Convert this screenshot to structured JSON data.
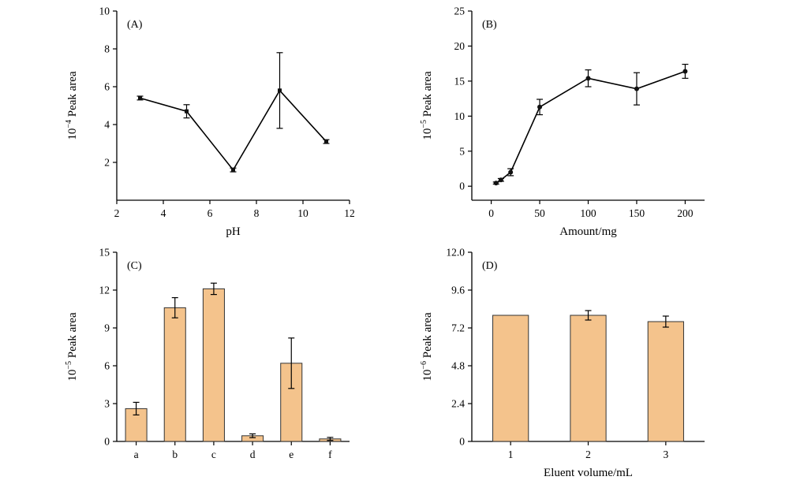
{
  "style": {
    "background": "#ffffff",
    "axis": "#000000",
    "text": "#000000",
    "line": "#000000",
    "marker": "#111111",
    "bar_fill": "#f4c38c",
    "bar_edge": "#333333"
  },
  "chart_data": [
    {
      "id": "A",
      "type": "line",
      "panel_label": "(A)",
      "xlabel": "pH",
      "ylabel_base": "10",
      "ylabel_exp": "−4",
      "ylabel_rest": " Peak area",
      "xlim": [
        2,
        12
      ],
      "ylim": [
        0,
        10
      ],
      "xticks": [
        2,
        4,
        6,
        8,
        10,
        12
      ],
      "xtick_labels": [
        "2",
        "4",
        "6",
        "8",
        "10",
        "12"
      ],
      "yticks": [
        2,
        4,
        6,
        8,
        10
      ],
      "ytick_labels": [
        "2",
        "4",
        "6",
        "8",
        "10"
      ],
      "marker": "square",
      "x": [
        3,
        5,
        7,
        9,
        11
      ],
      "y": [
        5.4,
        4.7,
        1.6,
        5.8,
        3.1
      ],
      "yerr": [
        0.1,
        0.35,
        0.1,
        2.0,
        0.1
      ]
    },
    {
      "id": "B",
      "type": "line",
      "panel_label": "(B)",
      "xlabel": "Amount/mg",
      "ylabel_base": "10",
      "ylabel_exp": "−5",
      "ylabel_rest": " Peak area",
      "xlim": [
        -20,
        220
      ],
      "ylim": [
        -2,
        25
      ],
      "xticks": [
        0,
        50,
        100,
        150,
        200
      ],
      "xtick_labels": [
        "0",
        "50",
        "100",
        "150",
        "200"
      ],
      "yticks": [
        0,
        5,
        10,
        15,
        20,
        25
      ],
      "ytick_labels": [
        "0",
        "5",
        "10",
        "15",
        "20",
        "25"
      ],
      "marker": "circle",
      "x": [
        5,
        10,
        20,
        50,
        100,
        150,
        200
      ],
      "y": [
        0.45,
        0.9,
        2.0,
        11.3,
        15.4,
        13.9,
        16.4
      ],
      "yerr": [
        0.15,
        0.2,
        0.5,
        1.1,
        1.2,
        2.3,
        1.0
      ]
    },
    {
      "id": "C",
      "type": "bar",
      "panel_label": "(C)",
      "xlabel": "",
      "ylabel_base": "10",
      "ylabel_exp": "−5",
      "ylabel_rest": " Peak area",
      "ylim": [
        0,
        15
      ],
      "yticks": [
        0,
        3,
        6,
        9,
        12,
        15
      ],
      "ytick_labels": [
        "0",
        "3",
        "6",
        "9",
        "12",
        "15"
      ],
      "categories": [
        "a",
        "b",
        "c",
        "d",
        "e",
        "f"
      ],
      "values": [
        2.6,
        10.6,
        12.1,
        0.45,
        6.2,
        0.2
      ],
      "yerr": [
        0.5,
        0.8,
        0.45,
        0.15,
        2.0,
        0.12
      ]
    },
    {
      "id": "D",
      "type": "bar",
      "panel_label": "(D)",
      "xlabel": "Eluent volume/mL",
      "ylabel_base": "10",
      "ylabel_exp": "−6",
      "ylabel_rest": " Peak area",
      "ylim": [
        0,
        12
      ],
      "yticks": [
        0,
        2.4,
        4.8,
        7.2,
        9.6,
        12
      ],
      "ytick_labels": [
        "0",
        "2.4",
        "4.8",
        "7.2",
        "9.6",
        "12.0"
      ],
      "categories": [
        "1",
        "2",
        "3"
      ],
      "values": [
        8.0,
        8.0,
        7.6
      ],
      "yerr": [
        0,
        0.3,
        0.35
      ]
    }
  ]
}
